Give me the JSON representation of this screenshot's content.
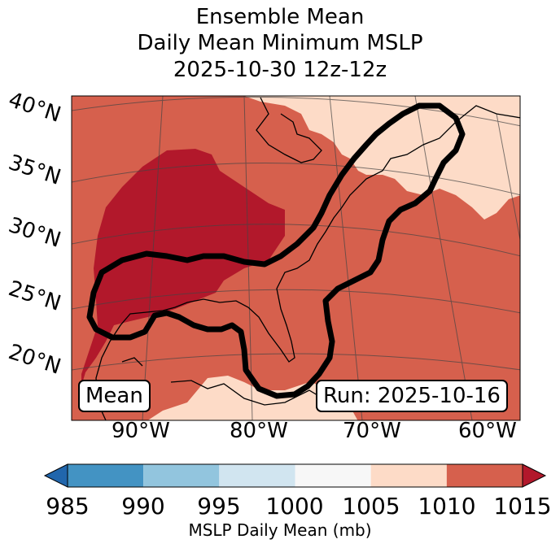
{
  "title": {
    "line1": "Ensemble Mean",
    "line2": "Daily Mean Minimum MSLP",
    "line3": "2025-10-30 12z-12z"
  },
  "map": {
    "lat_labels": [
      "40°N",
      "35°N",
      "30°N",
      "25°N",
      "20°N"
    ],
    "lon_labels": [
      "90°W",
      "80°W",
      "70°W",
      "60°W"
    ],
    "left_box": "Mean",
    "right_box": "Run: 2025-10-16",
    "fill_colors": {
      "dark_red": "#b2182b",
      "red": "#d6604d",
      "peach": "#fddbc7"
    },
    "contour_color": "#000000"
  },
  "colorbar": {
    "ticks": [
      "985",
      "990",
      "995",
      "1000",
      "1005",
      "1010",
      "1015"
    ],
    "label": "MSLP Daily Mean (mb)",
    "bins": [
      {
        "from": 985,
        "to": 990,
        "color": "#4393c3"
      },
      {
        "from": 990,
        "to": 995,
        "color": "#92c5de"
      },
      {
        "from": 995,
        "to": 1000,
        "color": "#d1e5f0"
      },
      {
        "from": 1000,
        "to": 1005,
        "color": "#f7f7f7"
      },
      {
        "from": 1005,
        "to": 1010,
        "color": "#fddbc7"
      },
      {
        "from": 1010,
        "to": 1015,
        "color": "#d6604d"
      }
    ],
    "under_color": "#2166ac",
    "over_color": "#b2182b"
  }
}
